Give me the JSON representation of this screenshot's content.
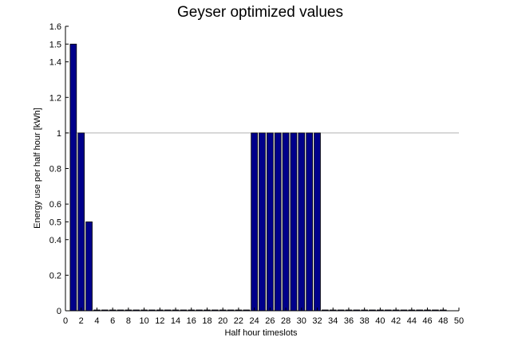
{
  "chart_data": {
    "type": "bar",
    "title": "Geyser optimized values",
    "xlabel": "Half hour timeslots",
    "ylabel": "Energy use per half hour [kWh]",
    "xlim": [
      0,
      50
    ],
    "ylim": [
      0,
      1.6
    ],
    "xticks": [
      0,
      2,
      4,
      6,
      8,
      10,
      12,
      14,
      16,
      18,
      20,
      22,
      24,
      26,
      28,
      30,
      32,
      34,
      36,
      38,
      40,
      42,
      44,
      46,
      48,
      50
    ],
    "yticks": [
      0,
      0.2,
      0.4,
      0.5,
      0.6,
      0.8,
      1,
      1.2,
      1.4,
      1.5,
      1.6
    ],
    "ytick_labels": [
      "0",
      "0.2",
      "0.4",
      "0.5",
      "0.6",
      "0.8",
      "1",
      "1.2",
      "1.4",
      "1.5",
      "1.6"
    ],
    "reference_line": 1,
    "bar_color": "#00008b",
    "reference_line_color": "#b0b0b0",
    "x": [
      1,
      2,
      3,
      4,
      5,
      6,
      7,
      8,
      9,
      10,
      11,
      12,
      13,
      14,
      15,
      16,
      17,
      18,
      19,
      20,
      21,
      22,
      23,
      24,
      25,
      26,
      27,
      28,
      29,
      30,
      31,
      32,
      33,
      34,
      35,
      36,
      37,
      38,
      39,
      40,
      41,
      42,
      43,
      44,
      45,
      46,
      47,
      48
    ],
    "values": [
      1.5,
      1,
      0.5,
      0,
      0,
      0,
      0,
      0,
      0,
      0,
      0,
      0,
      0,
      0,
      0,
      0,
      0,
      0,
      0,
      0,
      0,
      0,
      0,
      1,
      1,
      1,
      1,
      1,
      1,
      1,
      1,
      1,
      0,
      0,
      0,
      0,
      0,
      0,
      0,
      0,
      0,
      0,
      0,
      0,
      0,
      0,
      0,
      0
    ]
  }
}
